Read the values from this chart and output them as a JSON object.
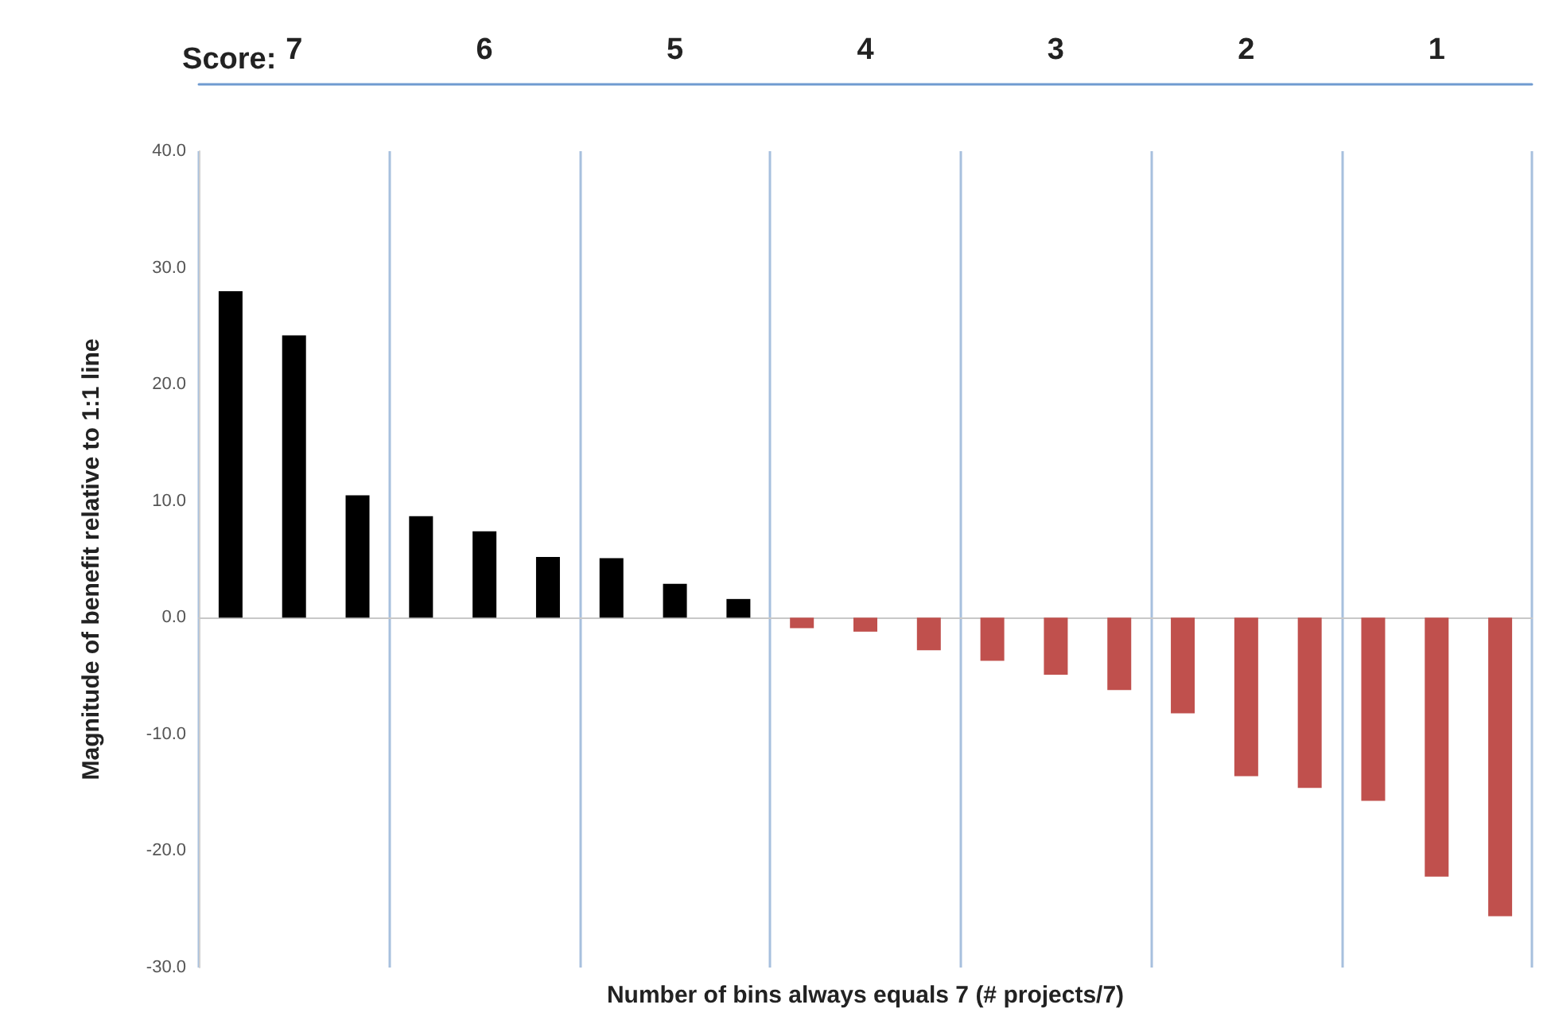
{
  "chart_data": {
    "type": "bar",
    "xlabel": "Number of bins always equals 7 (# projects/7)",
    "ylabel": "Magnitude of benefit relative to 1:1 line",
    "x2label": "Score:",
    "annotations": [
      "7",
      "6",
      "5",
      "4",
      "3",
      "2",
      "1"
    ],
    "categories": [
      null,
      null,
      null,
      null,
      null,
      null,
      null,
      null,
      null,
      null,
      null,
      null,
      null,
      null,
      null,
      null,
      null,
      null,
      null,
      null,
      null
    ],
    "values": [
      28.0,
      24.2,
      10.5,
      8.7,
      7.4,
      5.2,
      5.1,
      2.9,
      1.6,
      -0.9,
      -1.2,
      -2.8,
      -3.7,
      -4.9,
      -6.2,
      -8.2,
      -13.6,
      -14.6,
      -15.7,
      -22.2,
      -25.6
    ],
    "colors": [
      "#000000",
      "#000000",
      "#000000",
      "#000000",
      "#000000",
      "#000000",
      "#000000",
      "#000000",
      "#000000",
      "#c0504d",
      "#c0504d",
      "#c0504d",
      "#c0504d",
      "#c0504d",
      "#c0504d",
      "#c0504d",
      "#c0504d",
      "#c0504d",
      "#c0504d",
      "#c0504d",
      "#c0504d"
    ],
    "ylim": [
      -30,
      40
    ],
    "yticks": [
      {
        "value": -30,
        "label": "-30.0"
      },
      {
        "value": -20,
        "label": "-20.0"
      },
      {
        "value": -10,
        "label": "-10.0"
      },
      {
        "value": 0,
        "label": "0.0"
      },
      {
        "value": 10,
        "label": "10.0"
      },
      {
        "value": 20,
        "label": "20.0"
      },
      {
        "value": 30,
        "label": "30.0"
      },
      {
        "value": 40,
        "label": "40.0"
      }
    ],
    "tick_labels": "y",
    "grid": false
  }
}
